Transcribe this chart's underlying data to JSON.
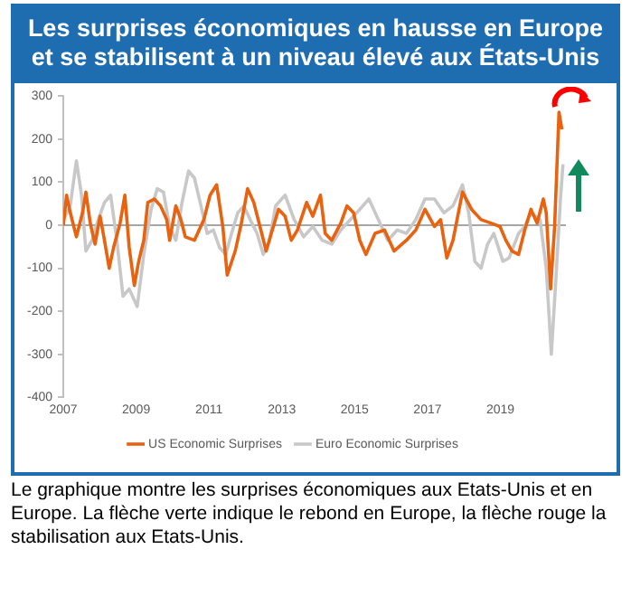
{
  "chart_data": {
    "type": "line",
    "title": "Les surprises économiques en hausse en Europe et se stabilisent à un niveau élevé aux États-Unis",
    "xlim": [
      2007,
      2020.8
    ],
    "xticks": [
      2007,
      2009,
      2011,
      2013,
      2015,
      2017,
      2019
    ],
    "ylim": [
      -400,
      300
    ],
    "yticks": [
      -400,
      -300,
      -200,
      -100,
      0,
      100,
      200,
      300
    ],
    "grid": false,
    "legend": "bottom",
    "marker": "none",
    "line_style": "solid",
    "ref_lines": [
      {
        "axis": "y",
        "value": 0,
        "color": "#a6a6a6"
      }
    ],
    "annotations": [
      "Le graphique montre les surprises économiques aux Etats-Unis et en Europe. La flèche verte indique le rebond en Europe, la flèche rouge la stabilisation aux Etats-Unis."
    ],
    "series": [
      {
        "name": "US Economic Surprises",
        "color": "#e8620f",
        "x": [
          2007.0,
          2007.09,
          2007.19,
          2007.36,
          2007.53,
          2007.62,
          2007.74,
          2007.87,
          2008.01,
          2008.13,
          2008.26,
          2008.38,
          2008.56,
          2008.69,
          2008.81,
          2008.95,
          2009.07,
          2009.21,
          2009.32,
          2009.5,
          2009.67,
          2009.84,
          2009.92,
          2010.09,
          2010.23,
          2010.35,
          2010.6,
          2010.86,
          2011.03,
          2011.21,
          2011.38,
          2011.5,
          2011.72,
          2011.89,
          2012.06,
          2012.23,
          2012.4,
          2012.57,
          2012.74,
          2012.91,
          2013.09,
          2013.26,
          2013.43,
          2013.68,
          2013.85,
          2014.06,
          2014.19,
          2014.37,
          2014.62,
          2014.79,
          2014.97,
          2015.14,
          2015.31,
          2015.56,
          2015.82,
          2016.08,
          2016.42,
          2016.68,
          2016.93,
          2017.19,
          2017.36,
          2017.53,
          2017.7,
          2017.96,
          2018.21,
          2018.47,
          2018.74,
          2018.99,
          2019.15,
          2019.32,
          2019.5,
          2019.67,
          2019.84,
          2020.01,
          2020.18,
          2020.26,
          2020.38,
          2020.49,
          2020.61,
          2020.69
        ],
        "values": [
          0,
          70,
          30,
          -27,
          30,
          77,
          5,
          -44,
          21,
          -35,
          -100,
          -52,
          5,
          70,
          -52,
          -140,
          -84,
          -35,
          53,
          61,
          45,
          13,
          -35,
          45,
          13,
          -27,
          -35,
          13,
          70,
          94,
          -3,
          -116,
          -60,
          5,
          85,
          53,
          -3,
          -60,
          -11,
          37,
          21,
          -35,
          -11,
          53,
          21,
          70,
          -19,
          -35,
          5,
          45,
          29,
          -35,
          -68,
          -19,
          -11,
          -60,
          -35,
          -11,
          37,
          -3,
          13,
          -76,
          -35,
          77,
          37,
          13,
          5,
          -3,
          -35,
          -60,
          -68,
          -11,
          37,
          5,
          61,
          29,
          -148,
          -3,
          263,
          223
        ]
      },
      {
        "name": "Euro Economic Surprises",
        "color": "#c8c8c8",
        "x": [
          2007.0,
          2007.19,
          2007.36,
          2007.5,
          2007.62,
          2007.79,
          2007.96,
          2008.13,
          2008.3,
          2008.47,
          2008.64,
          2008.81,
          2009.03,
          2009.21,
          2009.41,
          2009.58,
          2009.75,
          2009.92,
          2010.09,
          2010.26,
          2010.44,
          2010.6,
          2010.78,
          2010.95,
          2011.12,
          2011.29,
          2011.46,
          2011.62,
          2011.79,
          2011.96,
          2012.13,
          2012.32,
          2012.49,
          2012.66,
          2012.83,
          2013.09,
          2013.34,
          2013.6,
          2013.85,
          2014.11,
          2014.37,
          2014.62,
          2014.88,
          2015.14,
          2015.39,
          2015.65,
          2015.91,
          2016.17,
          2016.42,
          2016.68,
          2016.93,
          2017.19,
          2017.45,
          2017.7,
          2017.96,
          2018.13,
          2018.3,
          2018.47,
          2018.65,
          2018.82,
          2019.07,
          2019.24,
          2019.5,
          2019.67,
          2019.84,
          2020.09,
          2020.26,
          2020.4,
          2020.52,
          2020.65,
          2020.72
        ],
        "values": [
          13,
          45,
          150,
          70,
          -60,
          -35,
          13,
          53,
          70,
          -35,
          -165,
          -148,
          -189,
          -68,
          37,
          85,
          77,
          -3,
          -35,
          53,
          126,
          110,
          45,
          -19,
          -11,
          -52,
          -68,
          -19,
          29,
          45,
          13,
          -19,
          -68,
          -35,
          45,
          70,
          13,
          -27,
          -3,
          -35,
          -44,
          -11,
          13,
          37,
          61,
          13,
          -35,
          -11,
          -19,
          13,
          61,
          61,
          29,
          45,
          94,
          29,
          -84,
          -100,
          -44,
          -19,
          -84,
          -76,
          -19,
          -3,
          29,
          13,
          -100,
          -300,
          -132,
          61,
          142
        ]
      }
    ]
  }
}
